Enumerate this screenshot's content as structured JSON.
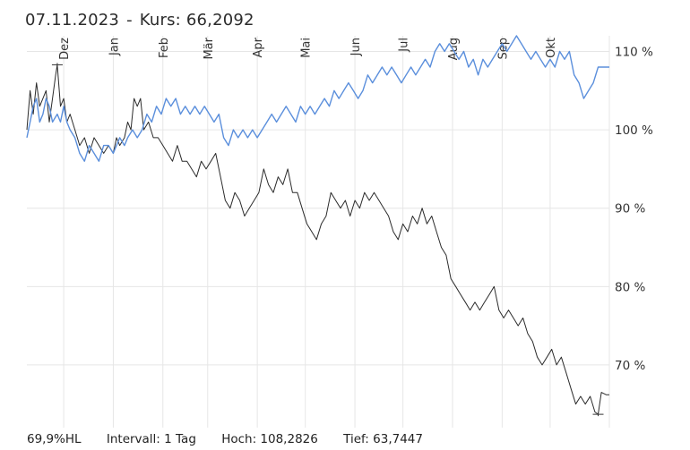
{
  "header": {
    "date": "07.11.2023",
    "separator": "-",
    "price_label": "Kurs: 66,2092"
  },
  "footer": {
    "range": "69,9%HL",
    "interval": "Intervall: 1 Tag",
    "high": "Hoch: 108,2826",
    "low": "Tief: 63,7447"
  },
  "chart_data": {
    "type": "line",
    "title": "",
    "xlabel": "",
    "ylabel": "",
    "x_range": [
      "2022-11-08",
      "2023-11-07"
    ],
    "ylim": [
      62,
      112
    ],
    "grid": true,
    "x_ticks": [
      {
        "label": "Dez",
        "date": "2022-12-01"
      },
      {
        "label": "Jan",
        "date": "2023-01-01"
      },
      {
        "label": "Feb",
        "date": "2023-02-01"
      },
      {
        "label": "Mär",
        "date": "2023-03-01"
      },
      {
        "label": "Apr",
        "date": "2023-04-01"
      },
      {
        "label": "Mai",
        "date": "2023-05-01"
      },
      {
        "label": "Jun",
        "date": "2023-06-01"
      },
      {
        "label": "Jul",
        "date": "2023-07-01"
      },
      {
        "label": "Aug",
        "date": "2023-08-01"
      },
      {
        "label": "Sep",
        "date": "2023-09-01"
      },
      {
        "label": "Okt",
        "date": "2023-10-01"
      }
    ],
    "y_ticks": [
      {
        "label": "110 %",
        "value": 110
      },
      {
        "label": "100 %",
        "value": 100
      },
      {
        "label": "90 %",
        "value": 90
      },
      {
        "label": "80 %",
        "value": 80
      },
      {
        "label": "70 %",
        "value": 70
      }
    ],
    "high_marker": {
      "date": "2022-11-27",
      "value": 108.3
    },
    "low_marker": {
      "date": "2023-10-31",
      "value": 63.7
    },
    "series": [
      {
        "color": "#2b2b2b",
        "points": [
          [
            "2022-11-08",
            100
          ],
          [
            "2022-11-10",
            105
          ],
          [
            "2022-11-12",
            102
          ],
          [
            "2022-11-14",
            106
          ],
          [
            "2022-11-16",
            103
          ],
          [
            "2022-11-18",
            104
          ],
          [
            "2022-11-20",
            105
          ],
          [
            "2022-11-22",
            101
          ],
          [
            "2022-11-24",
            104
          ],
          [
            "2022-11-26",
            107
          ],
          [
            "2022-11-27",
            108.3
          ],
          [
            "2022-11-29",
            103
          ],
          [
            "2022-12-01",
            104
          ],
          [
            "2022-12-03",
            101
          ],
          [
            "2022-12-05",
            102
          ],
          [
            "2022-12-08",
            100
          ],
          [
            "2022-12-11",
            98
          ],
          [
            "2022-12-14",
            99
          ],
          [
            "2022-12-17",
            97
          ],
          [
            "2022-12-20",
            99
          ],
          [
            "2022-12-23",
            98
          ],
          [
            "2022-12-26",
            97
          ],
          [
            "2022-12-29",
            98
          ],
          [
            "2023-01-01",
            97
          ],
          [
            "2023-01-03",
            99
          ],
          [
            "2023-01-05",
            98
          ],
          [
            "2023-01-08",
            99
          ],
          [
            "2023-01-10",
            101
          ],
          [
            "2023-01-12",
            100
          ],
          [
            "2023-01-14",
            104
          ],
          [
            "2023-01-16",
            103
          ],
          [
            "2023-01-18",
            104
          ],
          [
            "2023-01-20",
            100
          ],
          [
            "2023-01-23",
            101
          ],
          [
            "2023-01-26",
            99
          ],
          [
            "2023-01-29",
            99
          ],
          [
            "2023-02-01",
            98
          ],
          [
            "2023-02-04",
            97
          ],
          [
            "2023-02-07",
            96
          ],
          [
            "2023-02-10",
            98
          ],
          [
            "2023-02-13",
            96
          ],
          [
            "2023-02-16",
            96
          ],
          [
            "2023-02-19",
            95
          ],
          [
            "2023-02-22",
            94
          ],
          [
            "2023-02-25",
            96
          ],
          [
            "2023-02-28",
            95
          ],
          [
            "2023-03-03",
            96
          ],
          [
            "2023-03-06",
            97
          ],
          [
            "2023-03-09",
            94
          ],
          [
            "2023-03-12",
            91
          ],
          [
            "2023-03-15",
            90
          ],
          [
            "2023-03-18",
            92
          ],
          [
            "2023-03-21",
            91
          ],
          [
            "2023-03-24",
            89
          ],
          [
            "2023-03-27",
            90
          ],
          [
            "2023-03-30",
            91
          ],
          [
            "2023-04-02",
            92
          ],
          [
            "2023-04-05",
            95
          ],
          [
            "2023-04-08",
            93
          ],
          [
            "2023-04-11",
            92
          ],
          [
            "2023-04-14",
            94
          ],
          [
            "2023-04-17",
            93
          ],
          [
            "2023-04-20",
            95
          ],
          [
            "2023-04-23",
            92
          ],
          [
            "2023-04-26",
            92
          ],
          [
            "2023-04-29",
            90
          ],
          [
            "2023-05-02",
            88
          ],
          [
            "2023-05-05",
            87
          ],
          [
            "2023-05-08",
            86
          ],
          [
            "2023-05-11",
            88
          ],
          [
            "2023-05-14",
            89
          ],
          [
            "2023-05-17",
            92
          ],
          [
            "2023-05-20",
            91
          ],
          [
            "2023-05-23",
            90
          ],
          [
            "2023-05-26",
            91
          ],
          [
            "2023-05-29",
            89
          ],
          [
            "2023-06-01",
            91
          ],
          [
            "2023-06-04",
            90
          ],
          [
            "2023-06-07",
            92
          ],
          [
            "2023-06-10",
            91
          ],
          [
            "2023-06-13",
            92
          ],
          [
            "2023-06-16",
            91
          ],
          [
            "2023-06-19",
            90
          ],
          [
            "2023-06-22",
            89
          ],
          [
            "2023-06-25",
            87
          ],
          [
            "2023-06-28",
            86
          ],
          [
            "2023-07-01",
            88
          ],
          [
            "2023-07-04",
            87
          ],
          [
            "2023-07-07",
            89
          ],
          [
            "2023-07-10",
            88
          ],
          [
            "2023-07-13",
            90
          ],
          [
            "2023-07-16",
            88
          ],
          [
            "2023-07-19",
            89
          ],
          [
            "2023-07-22",
            87
          ],
          [
            "2023-07-25",
            85
          ],
          [
            "2023-07-28",
            84
          ],
          [
            "2023-07-31",
            81
          ],
          [
            "2023-08-03",
            80
          ],
          [
            "2023-08-06",
            79
          ],
          [
            "2023-08-09",
            78
          ],
          [
            "2023-08-12",
            77
          ],
          [
            "2023-08-15",
            78
          ],
          [
            "2023-08-18",
            77
          ],
          [
            "2023-08-21",
            78
          ],
          [
            "2023-08-24",
            79
          ],
          [
            "2023-08-27",
            80
          ],
          [
            "2023-08-30",
            77
          ],
          [
            "2023-09-02",
            76
          ],
          [
            "2023-09-05",
            77
          ],
          [
            "2023-09-08",
            76
          ],
          [
            "2023-09-11",
            75
          ],
          [
            "2023-09-14",
            76
          ],
          [
            "2023-09-17",
            74
          ],
          [
            "2023-09-20",
            73
          ],
          [
            "2023-09-23",
            71
          ],
          [
            "2023-09-26",
            70
          ],
          [
            "2023-09-29",
            71
          ],
          [
            "2023-10-02",
            72
          ],
          [
            "2023-10-05",
            70
          ],
          [
            "2023-10-08",
            71
          ],
          [
            "2023-10-11",
            69
          ],
          [
            "2023-10-14",
            67
          ],
          [
            "2023-10-17",
            65
          ],
          [
            "2023-10-20",
            66
          ],
          [
            "2023-10-23",
            65
          ],
          [
            "2023-10-26",
            66
          ],
          [
            "2023-10-29",
            64
          ],
          [
            "2023-10-31",
            63.7
          ],
          [
            "2023-11-02",
            66.5
          ],
          [
            "2023-11-05",
            66.2
          ],
          [
            "2023-11-07",
            66.2
          ]
        ]
      },
      {
        "color": "#5b8fdc",
        "points": [
          [
            "2022-11-08",
            99
          ],
          [
            "2022-11-10",
            101
          ],
          [
            "2022-11-12",
            103
          ],
          [
            "2022-11-14",
            104
          ],
          [
            "2022-11-16",
            101
          ],
          [
            "2022-11-18",
            102
          ],
          [
            "2022-11-20",
            104
          ],
          [
            "2022-11-22",
            103
          ],
          [
            "2022-11-24",
            101
          ],
          [
            "2022-11-27",
            102
          ],
          [
            "2022-11-29",
            101
          ],
          [
            "2022-12-01",
            103
          ],
          [
            "2022-12-03",
            101
          ],
          [
            "2022-12-05",
            100
          ],
          [
            "2022-12-08",
            99
          ],
          [
            "2022-12-11",
            97
          ],
          [
            "2022-12-14",
            96
          ],
          [
            "2022-12-17",
            98
          ],
          [
            "2022-12-20",
            97
          ],
          [
            "2022-12-23",
            96
          ],
          [
            "2022-12-26",
            98
          ],
          [
            "2022-12-29",
            98
          ],
          [
            "2023-01-01",
            97
          ],
          [
            "2023-01-03",
            98
          ],
          [
            "2023-01-05",
            99
          ],
          [
            "2023-01-08",
            98
          ],
          [
            "2023-01-10",
            99
          ],
          [
            "2023-01-13",
            100
          ],
          [
            "2023-01-16",
            99
          ],
          [
            "2023-01-19",
            100
          ],
          [
            "2023-01-22",
            102
          ],
          [
            "2023-01-25",
            101
          ],
          [
            "2023-01-28",
            103
          ],
          [
            "2023-01-31",
            102
          ],
          [
            "2023-02-03",
            104
          ],
          [
            "2023-02-06",
            103
          ],
          [
            "2023-02-09",
            104
          ],
          [
            "2023-02-12",
            102
          ],
          [
            "2023-02-15",
            103
          ],
          [
            "2023-02-18",
            102
          ],
          [
            "2023-02-21",
            103
          ],
          [
            "2023-02-24",
            102
          ],
          [
            "2023-02-27",
            103
          ],
          [
            "2023-03-02",
            102
          ],
          [
            "2023-03-05",
            101
          ],
          [
            "2023-03-08",
            102
          ],
          [
            "2023-03-11",
            99
          ],
          [
            "2023-03-14",
            98
          ],
          [
            "2023-03-17",
            100
          ],
          [
            "2023-03-20",
            99
          ],
          [
            "2023-03-23",
            100
          ],
          [
            "2023-03-26",
            99
          ],
          [
            "2023-03-29",
            100
          ],
          [
            "2023-04-01",
            99
          ],
          [
            "2023-04-04",
            100
          ],
          [
            "2023-04-07",
            101
          ],
          [
            "2023-04-10",
            102
          ],
          [
            "2023-04-13",
            101
          ],
          [
            "2023-04-16",
            102
          ],
          [
            "2023-04-19",
            103
          ],
          [
            "2023-04-22",
            102
          ],
          [
            "2023-04-25",
            101
          ],
          [
            "2023-04-28",
            103
          ],
          [
            "2023-05-01",
            102
          ],
          [
            "2023-05-04",
            103
          ],
          [
            "2023-05-07",
            102
          ],
          [
            "2023-05-10",
            103
          ],
          [
            "2023-05-13",
            104
          ],
          [
            "2023-05-16",
            103
          ],
          [
            "2023-05-19",
            105
          ],
          [
            "2023-05-22",
            104
          ],
          [
            "2023-05-25",
            105
          ],
          [
            "2023-05-28",
            106
          ],
          [
            "2023-05-31",
            105
          ],
          [
            "2023-06-03",
            104
          ],
          [
            "2023-06-06",
            105
          ],
          [
            "2023-06-09",
            107
          ],
          [
            "2023-06-12",
            106
          ],
          [
            "2023-06-15",
            107
          ],
          [
            "2023-06-18",
            108
          ],
          [
            "2023-06-21",
            107
          ],
          [
            "2023-06-24",
            108
          ],
          [
            "2023-06-27",
            107
          ],
          [
            "2023-06-30",
            106
          ],
          [
            "2023-07-03",
            107
          ],
          [
            "2023-07-06",
            108
          ],
          [
            "2023-07-09",
            107
          ],
          [
            "2023-07-12",
            108
          ],
          [
            "2023-07-15",
            109
          ],
          [
            "2023-07-18",
            108
          ],
          [
            "2023-07-21",
            110
          ],
          [
            "2023-07-24",
            111
          ],
          [
            "2023-07-27",
            110
          ],
          [
            "2023-07-30",
            111
          ],
          [
            "2023-08-02",
            110
          ],
          [
            "2023-08-05",
            109
          ],
          [
            "2023-08-08",
            110
          ],
          [
            "2023-08-11",
            108
          ],
          [
            "2023-08-14",
            109
          ],
          [
            "2023-08-17",
            107
          ],
          [
            "2023-08-20",
            109
          ],
          [
            "2023-08-23",
            108
          ],
          [
            "2023-08-26",
            109
          ],
          [
            "2023-08-29",
            110
          ],
          [
            "2023-09-01",
            111
          ],
          [
            "2023-09-04",
            110
          ],
          [
            "2023-09-07",
            111
          ],
          [
            "2023-09-10",
            112
          ],
          [
            "2023-09-13",
            111
          ],
          [
            "2023-09-16",
            110
          ],
          [
            "2023-09-19",
            109
          ],
          [
            "2023-09-22",
            110
          ],
          [
            "2023-09-25",
            109
          ],
          [
            "2023-09-28",
            108
          ],
          [
            "2023-10-01",
            109
          ],
          [
            "2023-10-04",
            108
          ],
          [
            "2023-10-07",
            110
          ],
          [
            "2023-10-10",
            109
          ],
          [
            "2023-10-13",
            110
          ],
          [
            "2023-10-16",
            107
          ],
          [
            "2023-10-19",
            106
          ],
          [
            "2023-10-22",
            104
          ],
          [
            "2023-10-25",
            105
          ],
          [
            "2023-10-28",
            106
          ],
          [
            "2023-10-31",
            108
          ],
          [
            "2023-11-03",
            108
          ],
          [
            "2023-11-07",
            108
          ]
        ]
      }
    ]
  }
}
